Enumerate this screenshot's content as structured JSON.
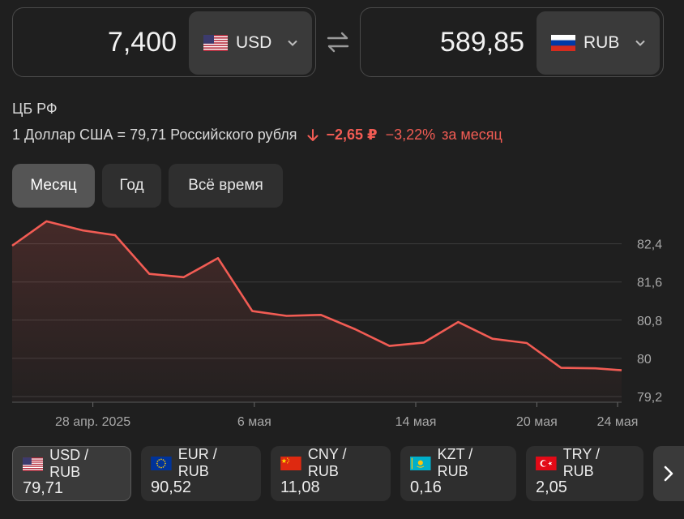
{
  "converter": {
    "from": {
      "amount": "7,400",
      "currency": "USD",
      "flag_icon": "us-flag-icon"
    },
    "to": {
      "amount": "589,85",
      "currency": "RUB",
      "flag_icon": "ru-flag-icon"
    }
  },
  "rate_info": {
    "source": "ЦБ РФ",
    "rate_text": "1 Доллар США = 79,71 Российского рубля",
    "change_abs": "−2,65 ₽",
    "change_pct": "−3,22%",
    "change_period": "за месяц",
    "trend_color": "#f25c54"
  },
  "range_tabs": [
    {
      "label": "Месяц",
      "active": true
    },
    {
      "label": "Год",
      "active": false
    },
    {
      "label": "Всё время",
      "active": false
    }
  ],
  "chart_data": {
    "type": "area",
    "title": "",
    "xlabel": "",
    "ylabel": "",
    "x_ticks": [
      "28 апр. 2025",
      "6 мая",
      "14 мая",
      "20 мая",
      "24 мая"
    ],
    "x_tick_days": [
      4,
      12,
      20,
      26,
      30
    ],
    "y_ticks": [
      "82,4",
      "81,6",
      "80,8",
      "80",
      "79,2"
    ],
    "y_tick_values": [
      82.4,
      81.6,
      80.8,
      80.0,
      79.2
    ],
    "ylim": [
      79.08,
      82.92
    ],
    "xlim": [
      0,
      30.2
    ],
    "grid": true,
    "line_color": "#f25c54",
    "points": [
      {
        "day": 0,
        "value": 82.36
      },
      {
        "day": 1.7,
        "value": 82.87
      },
      {
        "day": 3.5,
        "value": 82.68
      },
      {
        "day": 5.1,
        "value": 82.58
      },
      {
        "day": 6.8,
        "value": 81.77
      },
      {
        "day": 8.5,
        "value": 81.7
      },
      {
        "day": 10.2,
        "value": 82.1
      },
      {
        "day": 11.9,
        "value": 80.99
      },
      {
        "day": 13.6,
        "value": 80.89
      },
      {
        "day": 15.3,
        "value": 80.91
      },
      {
        "day": 17.0,
        "value": 80.61
      },
      {
        "day": 18.7,
        "value": 80.26
      },
      {
        "day": 20.4,
        "value": 80.33
      },
      {
        "day": 22.1,
        "value": 80.76
      },
      {
        "day": 23.8,
        "value": 80.41
      },
      {
        "day": 25.5,
        "value": 80.32
      },
      {
        "day": 27.2,
        "value": 79.8
      },
      {
        "day": 28.9,
        "value": 79.79
      },
      {
        "day": 30.2,
        "value": 79.75
      }
    ]
  },
  "pairs": [
    {
      "label": "USD / RUB",
      "value": "79,71",
      "flag_icon": "us-flag-icon",
      "active": true
    },
    {
      "label": "EUR / RUB",
      "value": "90,52",
      "flag_icon": "eu-flag-icon",
      "active": false
    },
    {
      "label": "CNY / RUB",
      "value": "11,08",
      "flag_icon": "cn-flag-icon",
      "active": false
    },
    {
      "label": "KZT / RUB",
      "value": "0,16",
      "flag_icon": "kz-flag-icon",
      "active": false
    },
    {
      "label": "TRY / RUB",
      "value": "2,05",
      "flag_icon": "tr-flag-icon",
      "active": false
    }
  ]
}
